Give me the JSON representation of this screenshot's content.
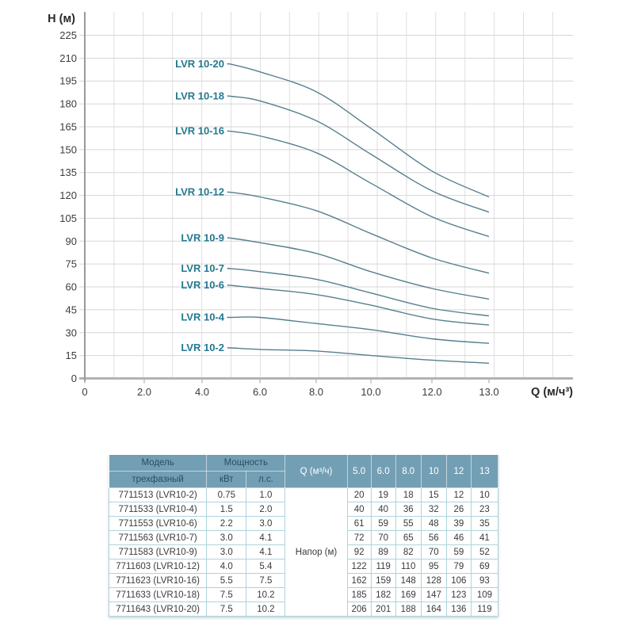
{
  "chart_data": {
    "type": "line",
    "title": "",
    "ylabel": "H (м)",
    "xlabel": "Q (м/ч³)",
    "ylim": [
      0,
      225
    ],
    "y_tick_step": 15,
    "y_ticks": [
      0,
      15,
      30,
      45,
      60,
      75,
      90,
      105,
      120,
      135,
      150,
      165,
      180,
      195,
      210,
      225
    ],
    "x_ticks": [
      {
        "label": "0",
        "q": 0
      },
      {
        "label": "2.0",
        "q": 2
      },
      {
        "label": "4.0",
        "q": 4
      },
      {
        "label": "6.0",
        "q": 6
      },
      {
        "label": "8.0",
        "q": 8
      },
      {
        "label": "10.0",
        "q": 10
      },
      {
        "label": "12.0",
        "q": 12
      },
      {
        "label": "13.0",
        "q": 13
      }
    ],
    "grid": true,
    "legend_position": "inline-labels-left-of-curves",
    "x": [
      5.0,
      6.0,
      8.0,
      10,
      12,
      13
    ],
    "series": [
      {
        "name": "LVR 10-2",
        "values": [
          20,
          19,
          18,
          15,
          12,
          10
        ]
      },
      {
        "name": "LVR 10-4",
        "values": [
          40,
          40,
          36,
          32,
          26,
          23
        ]
      },
      {
        "name": "LVR 10-6",
        "values": [
          61,
          59,
          55,
          48,
          39,
          35
        ]
      },
      {
        "name": "LVR 10-7",
        "values": [
          72,
          70,
          65,
          56,
          46,
          41
        ]
      },
      {
        "name": "LVR 10-9",
        "values": [
          92,
          89,
          82,
          70,
          59,
          52
        ]
      },
      {
        "name": "LVR 10-12",
        "values": [
          122,
          119,
          110,
          95,
          79,
          69
        ]
      },
      {
        "name": "LVR 10-16",
        "values": [
          162,
          159,
          148,
          128,
          106,
          93
        ]
      },
      {
        "name": "LVR 10-18",
        "values": [
          185,
          182,
          169,
          147,
          123,
          109
        ]
      },
      {
        "name": "LVR 10-20",
        "values": [
          206,
          201,
          188,
          164,
          136,
          119
        ]
      }
    ],
    "colors": {
      "curve": "#567f8d",
      "series_label": "#24798f",
      "tick_text": "#3c3c3c",
      "axis_title": "#282828",
      "grid": "#dcdcdc",
      "x_axis_line": "#b3b3b3",
      "y_axis_line": "#9a9a9a"
    }
  },
  "table": {
    "header": {
      "model_title": "Модель",
      "model_subtitle": "трехфазный",
      "power_title": "Мощность",
      "power_kw": "кВт",
      "power_hp": "л.с.",
      "q_title": "Q (м³/ч)",
      "q_values": [
        "5.0",
        "6.0",
        "8.0",
        "10",
        "12",
        "13"
      ],
      "napor_label": "Напор (м)"
    },
    "rows": [
      {
        "model": "7711513 (LVR10-2)",
        "kw": "0.75",
        "hp": "1.0",
        "napor": [
          "20",
          "19",
          "18",
          "15",
          "12",
          "10"
        ]
      },
      {
        "model": "7711533 (LVR10-4)",
        "kw": "1.5",
        "hp": "2.0",
        "napor": [
          "40",
          "40",
          "36",
          "32",
          "26",
          "23"
        ]
      },
      {
        "model": "7711553 (LVR10-6)",
        "kw": "2.2",
        "hp": "3.0",
        "napor": [
          "61",
          "59",
          "55",
          "48",
          "39",
          "35"
        ]
      },
      {
        "model": "7711563 (LVR10-7)",
        "kw": "3.0",
        "hp": "4.1",
        "napor": [
          "72",
          "70",
          "65",
          "56",
          "46",
          "41"
        ]
      },
      {
        "model": "7711583 (LVR10-9)",
        "kw": "3.0",
        "hp": "4.1",
        "napor": [
          "92",
          "89",
          "82",
          "70",
          "59",
          "52"
        ]
      },
      {
        "model": "7711603 (LVR10-12)",
        "kw": "4.0",
        "hp": "5.4",
        "napor": [
          "122",
          "119",
          "110",
          "95",
          "79",
          "69"
        ]
      },
      {
        "model": "7711623 (LVR10-16)",
        "kw": "5.5",
        "hp": "7.5",
        "napor": [
          "162",
          "159",
          "148",
          "128",
          "106",
          "93"
        ]
      },
      {
        "model": "7711633 (LVR10-18)",
        "kw": "7.5",
        "hp": "10.2",
        "napor": [
          "185",
          "182",
          "169",
          "147",
          "123",
          "109"
        ]
      },
      {
        "model": "7711643 (LVR10-20)",
        "kw": "7.5",
        "hp": "10.2",
        "napor": [
          "206",
          "201",
          "188",
          "164",
          "136",
          "119"
        ]
      }
    ],
    "colors": {
      "header_bg": "#739fb4",
      "header_text_dark": "#2a4d63",
      "header_text_light": "#ffffff",
      "cell_border": "#aed4de",
      "cell_text": "#3a3a3a"
    }
  }
}
